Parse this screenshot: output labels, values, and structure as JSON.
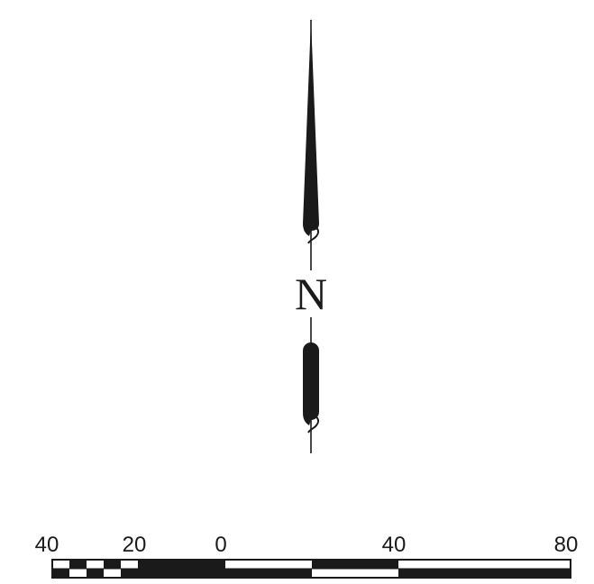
{
  "north_arrow": {
    "letter": "N",
    "ink_color": "#1a1a1a"
  },
  "scale_bar": {
    "labels": [
      "40",
      "20",
      "0",
      "40",
      "80"
    ],
    "fill_color": "#1a1a1a",
    "empty_color": "#ffffff"
  }
}
